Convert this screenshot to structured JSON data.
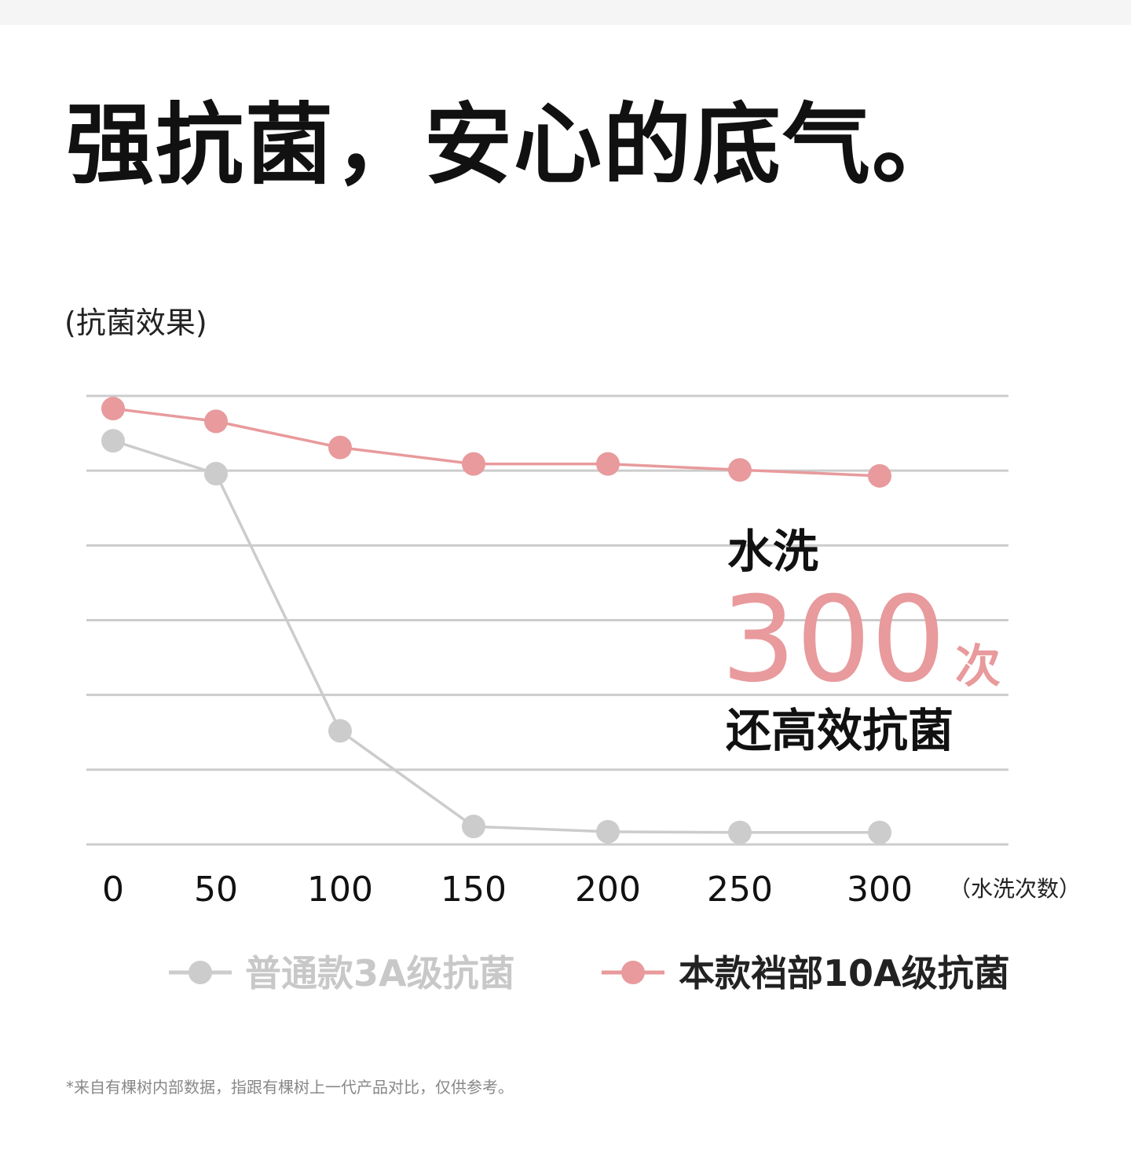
{
  "headline": "强抗菌，安心的底气。",
  "footnote": "*来自有棵树内部数据，指跟有棵树上一代产品对比，仅供参考。",
  "callout": {
    "line1": "水洗",
    "number": "300",
    "unit": "次",
    "line2": "还高效抗菌"
  },
  "chart_data": {
    "type": "line",
    "ylabel": "(抗菌效果)",
    "xlabel": "（水洗次数）",
    "x": [
      0,
      50,
      100,
      150,
      200,
      250,
      300
    ],
    "xtick_labels": [
      "0",
      "50",
      "100",
      "150",
      "200",
      "250",
      "300"
    ],
    "ylim": [
      0,
      6
    ],
    "grid": true,
    "legend_position": "bottom",
    "series": [
      {
        "name": "普通款3A级抗菌",
        "color": "#cccccc",
        "text_color": "#c8c8c8",
        "values": [
          5.4,
          4.96,
          1.52,
          0.24,
          0.17,
          0.16,
          0.16
        ]
      },
      {
        "name": "本款裆部10A级抗菌",
        "color": "#e89a9c",
        "text_color": "#222222",
        "values": [
          5.83,
          5.66,
          5.31,
          5.09,
          5.09,
          5.01,
          4.93
        ]
      }
    ],
    "colors": {
      "grid": "#cccccc"
    }
  }
}
